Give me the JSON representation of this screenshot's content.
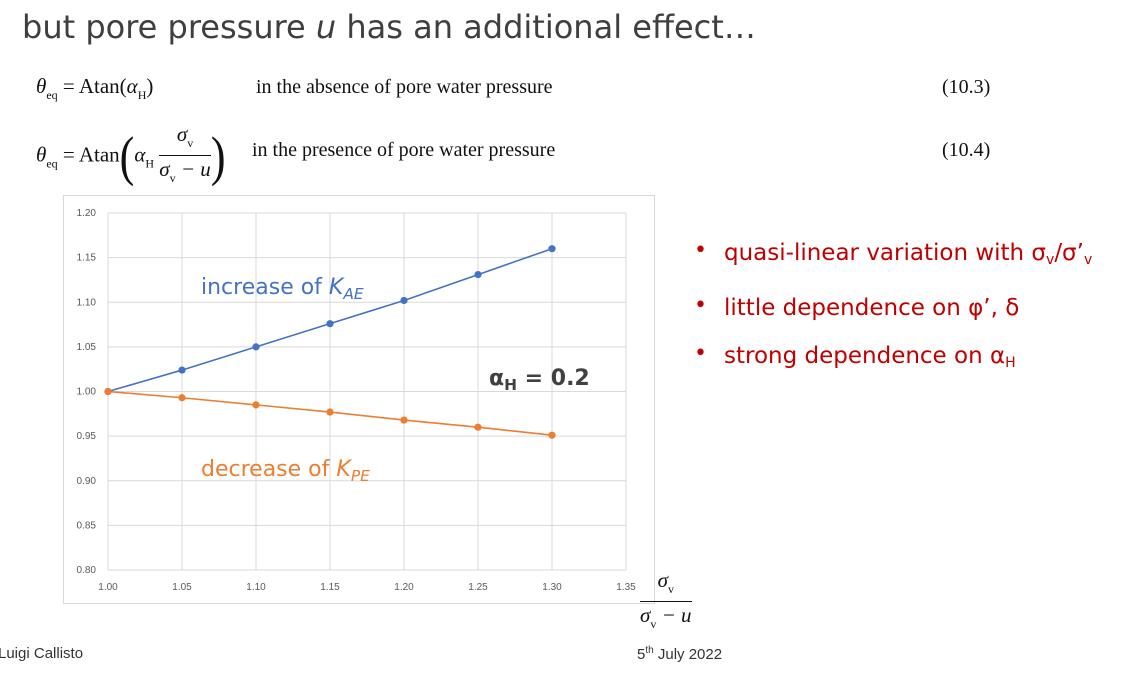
{
  "slide": {
    "title_before": "but pore pressure ",
    "title_var": "u",
    "title_after": " has an additional effect…"
  },
  "equations": [
    {
      "lhs": "θ",
      "lhs_sub": "eq",
      "func": "= Atan",
      "arg_var": "α",
      "arg_sub": "H",
      "description": "in the absence of pore water pressure",
      "number": "(10.3)"
    },
    {
      "lhs": "θ",
      "lhs_sub": "eq",
      "func": "= Atan",
      "arg_var": "α",
      "arg_sub": "H",
      "frac_num": "σ",
      "frac_num_sub": "v",
      "frac_den": "σ",
      "frac_den_sub": "v",
      "frac_den_rest": " − u",
      "description": "in the presence of pore water pressure",
      "number": "(10.4)"
    }
  ],
  "chart_data": {
    "type": "line",
    "x": [
      1.0,
      1.05,
      1.1,
      1.15,
      1.2,
      1.25,
      1.3
    ],
    "xlim": [
      1.0,
      1.35
    ],
    "ylim": [
      0.8,
      1.2
    ],
    "x_ticks": [
      "1.00",
      "1.05",
      "1.10",
      "1.15",
      "1.20",
      "1.25",
      "1.30",
      "1.35"
    ],
    "y_ticks": [
      "0.80",
      "0.85",
      "0.90",
      "0.95",
      "1.00",
      "1.05",
      "1.10",
      "1.15",
      "1.20"
    ],
    "grid": true,
    "series": [
      {
        "name": "K_AE",
        "color": "#4472c4",
        "values": [
          1.0,
          1.024,
          1.05,
          1.076,
          1.102,
          1.131,
          1.16
        ]
      },
      {
        "name": "K_PE",
        "color": "#ed7d31",
        "values": [
          1.0,
          0.993,
          0.985,
          0.977,
          0.968,
          0.96,
          0.951
        ]
      }
    ],
    "annotations": {
      "increase_text": "increase of ",
      "increase_var": "K",
      "increase_sub": "AE",
      "decrease_text": "decrease of ",
      "decrease_var": "K",
      "decrease_sub": "PE",
      "alpha_label": "α",
      "alpha_sub": "H",
      "alpha_value": " = 0.2"
    },
    "xlabel": {
      "num": "σ",
      "num_sub": "v",
      "den": "σ",
      "den_sub": "v",
      "den_rest": " − u"
    }
  },
  "bullets": [
    {
      "text": "quasi-linear variation with σ",
      "sub1": "v",
      "mid": "/σ’",
      "sub2": "v"
    },
    {
      "text": "little dependence on φ’, δ"
    },
    {
      "text": "strong dependence on α",
      "sub1": "H"
    }
  ],
  "bullet_glyph": "•",
  "footer": {
    "author": "Luigi Callisto",
    "date_day": "5",
    "date_sup": "th",
    "date_rest": " July 2022"
  }
}
